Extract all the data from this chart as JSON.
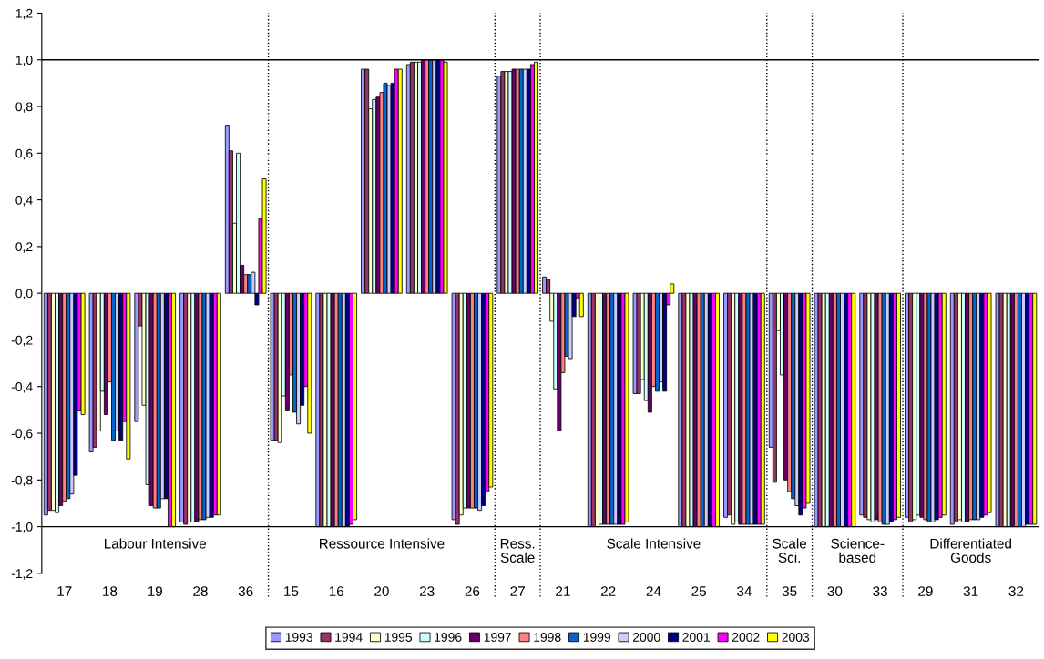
{
  "chart_data": {
    "type": "bar",
    "categories": [
      "17",
      "18",
      "19",
      "28",
      "36",
      "15",
      "16",
      "20",
      "23",
      "26",
      "27",
      "21",
      "22",
      "24",
      "25",
      "34",
      "35",
      "30",
      "33",
      "29",
      "31",
      "32"
    ],
    "series": [
      {
        "name": "1993",
        "color": "#9999ff",
        "values": [
          -0.95,
          -0.68,
          -0.55,
          -0.98,
          0.72,
          -0.63,
          -1.0,
          0.96,
          0.98,
          -0.97,
          0.93,
          0.07,
          -1.0,
          -0.43,
          -1.0,
          -0.96,
          -0.66,
          -1.0,
          -0.95,
          -0.96,
          -0.99,
          -1.0
        ]
      },
      {
        "name": "1994",
        "color": "#993366",
        "values": [
          -0.93,
          -0.66,
          -0.14,
          -0.99,
          0.61,
          -0.63,
          -1.0,
          0.96,
          0.99,
          -0.99,
          0.95,
          0.06,
          -1.0,
          -0.43,
          -1.0,
          -0.95,
          -0.81,
          -1.0,
          -0.96,
          -0.98,
          -0.98,
          -1.0
        ]
      },
      {
        "name": "1995",
        "color": "#ffffcc",
        "values": [
          -0.93,
          -0.59,
          -0.48,
          -0.98,
          0.3,
          -0.64,
          -1.0,
          0.79,
          0.99,
          -0.95,
          0.95,
          -0.12,
          -1.0,
          -0.37,
          -1.0,
          -0.99,
          -0.16,
          -1.0,
          -0.97,
          -0.97,
          -0.97,
          -1.0
        ]
      },
      {
        "name": "1996",
        "color": "#ccffff",
        "values": [
          -0.94,
          -0.42,
          -0.82,
          -0.98,
          0.6,
          -0.44,
          -1.0,
          0.83,
          0.99,
          -0.92,
          0.95,
          -0.41,
          -0.99,
          -0.46,
          -1.0,
          -0.98,
          -0.35,
          -1.0,
          -0.98,
          -0.95,
          -0.98,
          -1.0
        ]
      },
      {
        "name": "1997",
        "color": "#660066",
        "values": [
          -0.91,
          -0.52,
          -0.91,
          -0.98,
          0.12,
          -0.5,
          -1.0,
          0.84,
          1.0,
          -0.92,
          0.96,
          -0.59,
          -0.99,
          -0.51,
          -1.0,
          -0.99,
          -0.8,
          -1.0,
          -0.97,
          -0.96,
          -0.98,
          -1.0
        ]
      },
      {
        "name": "1998",
        "color": "#ff8080",
        "values": [
          -0.89,
          -0.38,
          -0.92,
          -0.97,
          0.08,
          -0.35,
          -1.0,
          0.86,
          1.0,
          -0.92,
          0.96,
          -0.34,
          -0.99,
          -0.4,
          -1.0,
          -0.99,
          -0.85,
          -1.0,
          -0.98,
          -0.97,
          -0.97,
          -1.0
        ]
      },
      {
        "name": "1999",
        "color": "#0066cc",
        "values": [
          -0.88,
          -0.63,
          -0.92,
          -0.97,
          0.08,
          -0.51,
          -1.0,
          0.9,
          1.0,
          -0.92,
          0.96,
          -0.27,
          -0.99,
          -0.42,
          -1.0,
          -0.99,
          -0.88,
          -1.0,
          -0.99,
          -0.98,
          -0.97,
          -1.0
        ]
      },
      {
        "name": "2000",
        "color": "#ccccff",
        "values": [
          -0.86,
          -0.59,
          -0.88,
          -0.96,
          0.09,
          -0.56,
          -1.0,
          0.89,
          1.0,
          -0.93,
          0.96,
          -0.28,
          -0.99,
          -0.38,
          -1.0,
          -0.99,
          -0.91,
          -1.0,
          -0.99,
          -0.98,
          -0.97,
          -1.0
        ]
      },
      {
        "name": "2001",
        "color": "#000080",
        "values": [
          -0.78,
          -0.63,
          -0.88,
          -0.96,
          -0.05,
          -0.48,
          -1.0,
          0.9,
          1.0,
          -0.91,
          0.96,
          -0.1,
          -0.99,
          -0.42,
          -1.0,
          -0.99,
          -0.95,
          -1.0,
          -0.98,
          -0.97,
          -0.96,
          -0.99
        ]
      },
      {
        "name": "2002",
        "color": "#ff00ff",
        "values": [
          -0.5,
          -0.55,
          -1.0,
          -0.95,
          0.32,
          -0.4,
          -0.99,
          0.96,
          1.0,
          -0.85,
          0.98,
          -0.02,
          -0.99,
          -0.05,
          -1.0,
          -0.99,
          -0.92,
          -1.0,
          -0.97,
          -0.96,
          -0.95,
          -0.99
        ]
      },
      {
        "name": "2003",
        "color": "#ffff00",
        "values": [
          -0.52,
          -0.71,
          -1.0,
          -0.95,
          0.49,
          -0.6,
          -0.97,
          0.96,
          0.99,
          -0.83,
          0.99,
          -0.1,
          -0.98,
          0.04,
          -1.0,
          -0.99,
          -0.9,
          -1.0,
          -0.96,
          -0.95,
          -0.94,
          -0.99
        ]
      }
    ],
    "ylim": [
      -1.2,
      1.2
    ],
    "yticks": [
      {
        "value": -1.2,
        "label": "-1,2"
      },
      {
        "value": -1.0,
        "label": "-1,0"
      },
      {
        "value": -0.8,
        "label": "-0,8"
      },
      {
        "value": -0.6,
        "label": "-0,6"
      },
      {
        "value": -0.4,
        "label": "-0,4"
      },
      {
        "value": -0.2,
        "label": "-0,2"
      },
      {
        "value": 0,
        "label": "0,0"
      },
      {
        "value": 0.2,
        "label": "0,2"
      },
      {
        "value": 0.4,
        "label": "0,4"
      },
      {
        "value": 0.6,
        "label": "0,6"
      },
      {
        "value": 0.8,
        "label": "0,8"
      },
      {
        "value": 1.0,
        "label": "1,0"
      },
      {
        "value": 1.2,
        "label": "1,2"
      }
    ],
    "ref_lines": [
      {
        "axis": "y",
        "value": 1.0,
        "color": "#000000",
        "line_style": "solid"
      },
      {
        "axis": "y",
        "value": -1.0,
        "color": "#000000",
        "line_style": "solid"
      }
    ],
    "annotations": [
      "Labour Intensive",
      "Ressource Intensive",
      "Ress.\nScale",
      "Scale Intensive",
      "Scale\nSci.",
      "Science-\nbased",
      "Differentiated\nGoods"
    ],
    "grid": false,
    "legend": "bottom"
  }
}
